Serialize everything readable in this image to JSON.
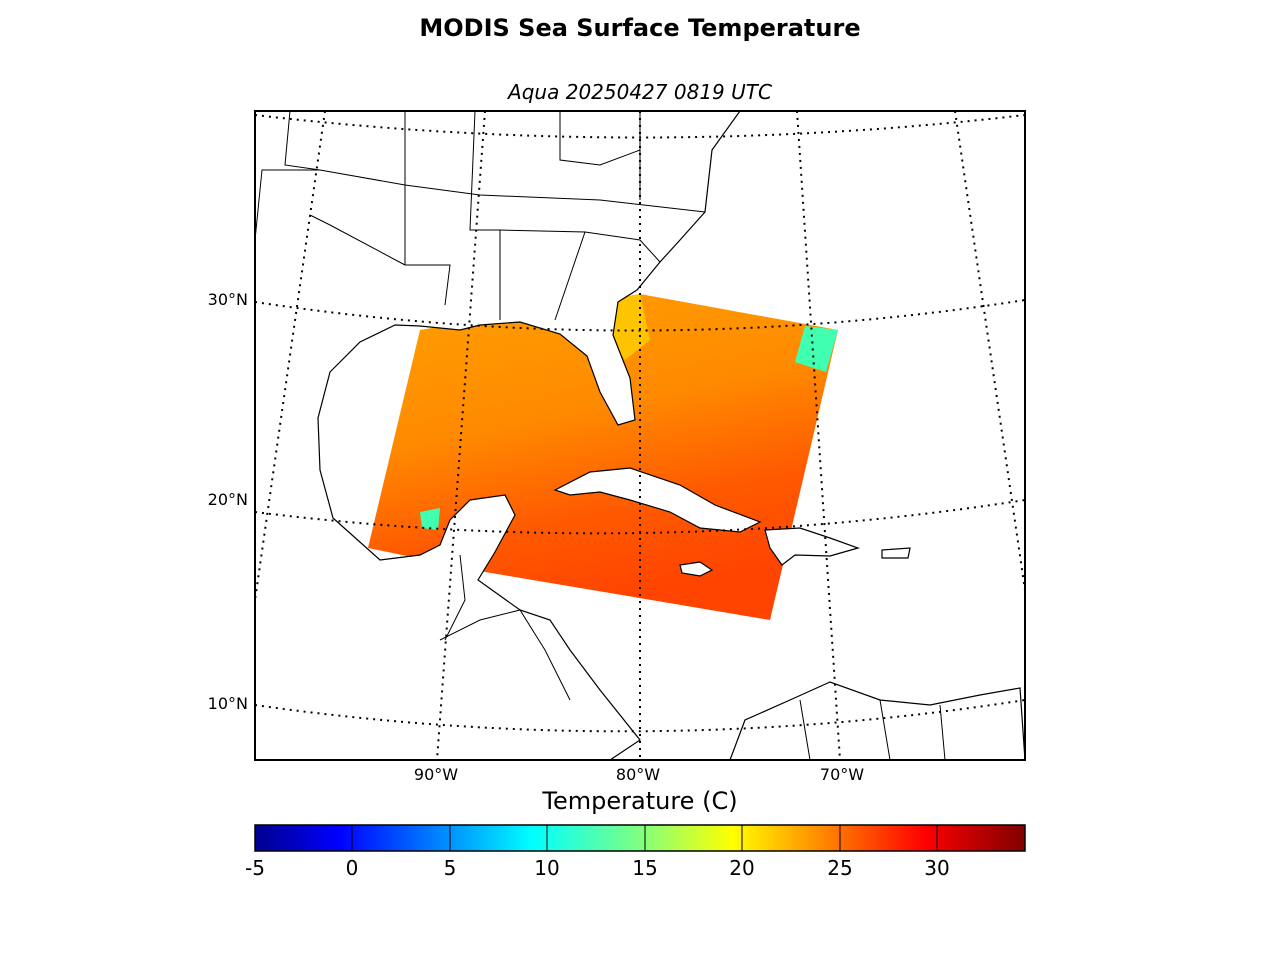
{
  "figure": {
    "title": "MODIS Sea Surface Temperature",
    "subtitle": "Aqua 20250427 0819 UTC"
  },
  "map": {
    "lat_labels": [
      "30°N",
      "20°N",
      "10°N"
    ],
    "lon_labels": [
      "90°W",
      "80°W",
      "70°W"
    ],
    "projection": "lambert-conformal",
    "gridlines": "dotted",
    "coastline_color": "#000000",
    "land_color": "#ffffff"
  },
  "colorbar": {
    "label": "Temperature (C)",
    "tick_labels": [
      "-5",
      "0",
      "5",
      "10",
      "15",
      "20",
      "25",
      "30"
    ],
    "min": -5,
    "max": 34.5,
    "colormap": "jet",
    "colors": [
      "#00008f",
      "#0000ff",
      "#0080ff",
      "#00ffff",
      "#80ff80",
      "#ffff00",
      "#ff8000",
      "#ff0000",
      "#800000"
    ]
  },
  "sst_swath": {
    "dominant_color": "#ff8c00",
    "warm_color": "#ff4400",
    "cool_patch_color": "#40ffb0"
  }
}
